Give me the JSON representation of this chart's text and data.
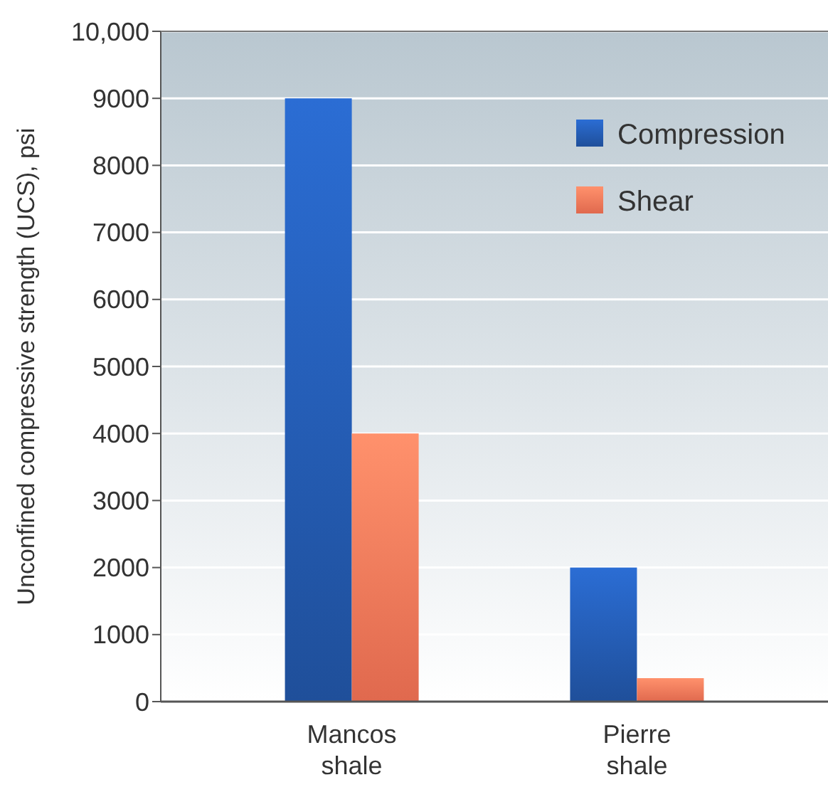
{
  "chart_data": {
    "type": "bar",
    "ylabel": "Unconfined compressive strength (UCS), psi",
    "categories": [
      "Mancos shale",
      "Pierre shale"
    ],
    "series": [
      {
        "name": "Compression",
        "color": "#1f4f9a",
        "values": [
          9000,
          2000
        ]
      },
      {
        "name": "Shear",
        "color": "#e0694e",
        "values": [
          4000,
          350
        ]
      }
    ],
    "ylim": [
      0,
      10000
    ],
    "yticks": [
      0,
      1000,
      2000,
      3000,
      4000,
      5000,
      6000,
      7000,
      8000,
      9000,
      {
        "value": 10000,
        "label": "10,000"
      }
    ],
    "grid": "y",
    "legend": "top right"
  }
}
